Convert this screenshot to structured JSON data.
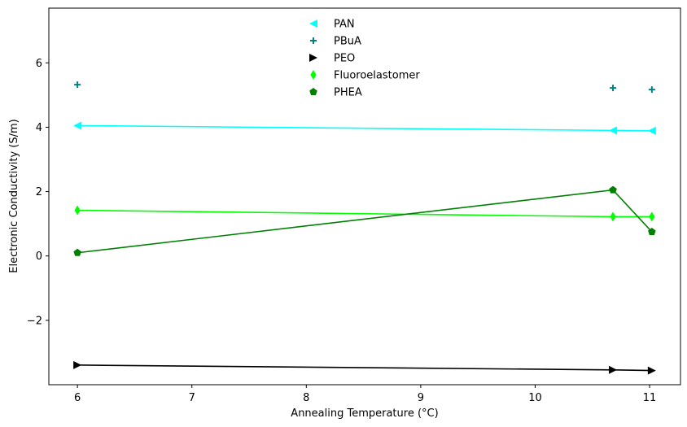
{
  "chart_data": {
    "type": "line",
    "title": "",
    "xlabel": "Annealing Temperature (°C)",
    "ylabel": "Electronic Conductivity (S/m)",
    "xlim": [
      5.75,
      11.27
    ],
    "ylim": [
      -4.0,
      7.7
    ],
    "xticks": [
      6,
      7,
      8,
      9,
      10,
      11
    ],
    "yticks": [
      -2,
      0,
      2,
      4,
      6
    ],
    "ytick_labels": [
      "−2",
      "0",
      "2",
      "4",
      "6"
    ],
    "grid": false,
    "legend_position": "top-center",
    "series": [
      {
        "name": "PAN",
        "color": "#00ffff",
        "marker": "triangle-left",
        "line": true,
        "x": [
          6.0,
          10.68,
          11.02
        ],
        "y": [
          4.05,
          3.9,
          3.89
        ]
      },
      {
        "name": "PBuA",
        "color": "#008080",
        "marker": "plus",
        "line": false,
        "x": [
          6.0,
          10.68,
          11.02
        ],
        "y": [
          5.32,
          5.22,
          5.17
        ]
      },
      {
        "name": "PEO",
        "color": "#000000",
        "marker": "triangle-right",
        "line": true,
        "x": [
          6.0,
          10.68,
          11.02
        ],
        "y": [
          -3.39,
          -3.54,
          -3.56
        ]
      },
      {
        "name": "Fluoroelastomer",
        "color": "#00ff00",
        "marker": "thin-diamond",
        "line": true,
        "x": [
          6.0,
          10.68,
          11.02
        ],
        "y": [
          1.42,
          1.22,
          1.22
        ]
      },
      {
        "name": "PHEA",
        "color": "#008000",
        "marker": "pentagon",
        "line": true,
        "x": [
          6.0,
          10.68,
          11.02
        ],
        "y": [
          0.1,
          2.05,
          0.75
        ]
      }
    ]
  }
}
